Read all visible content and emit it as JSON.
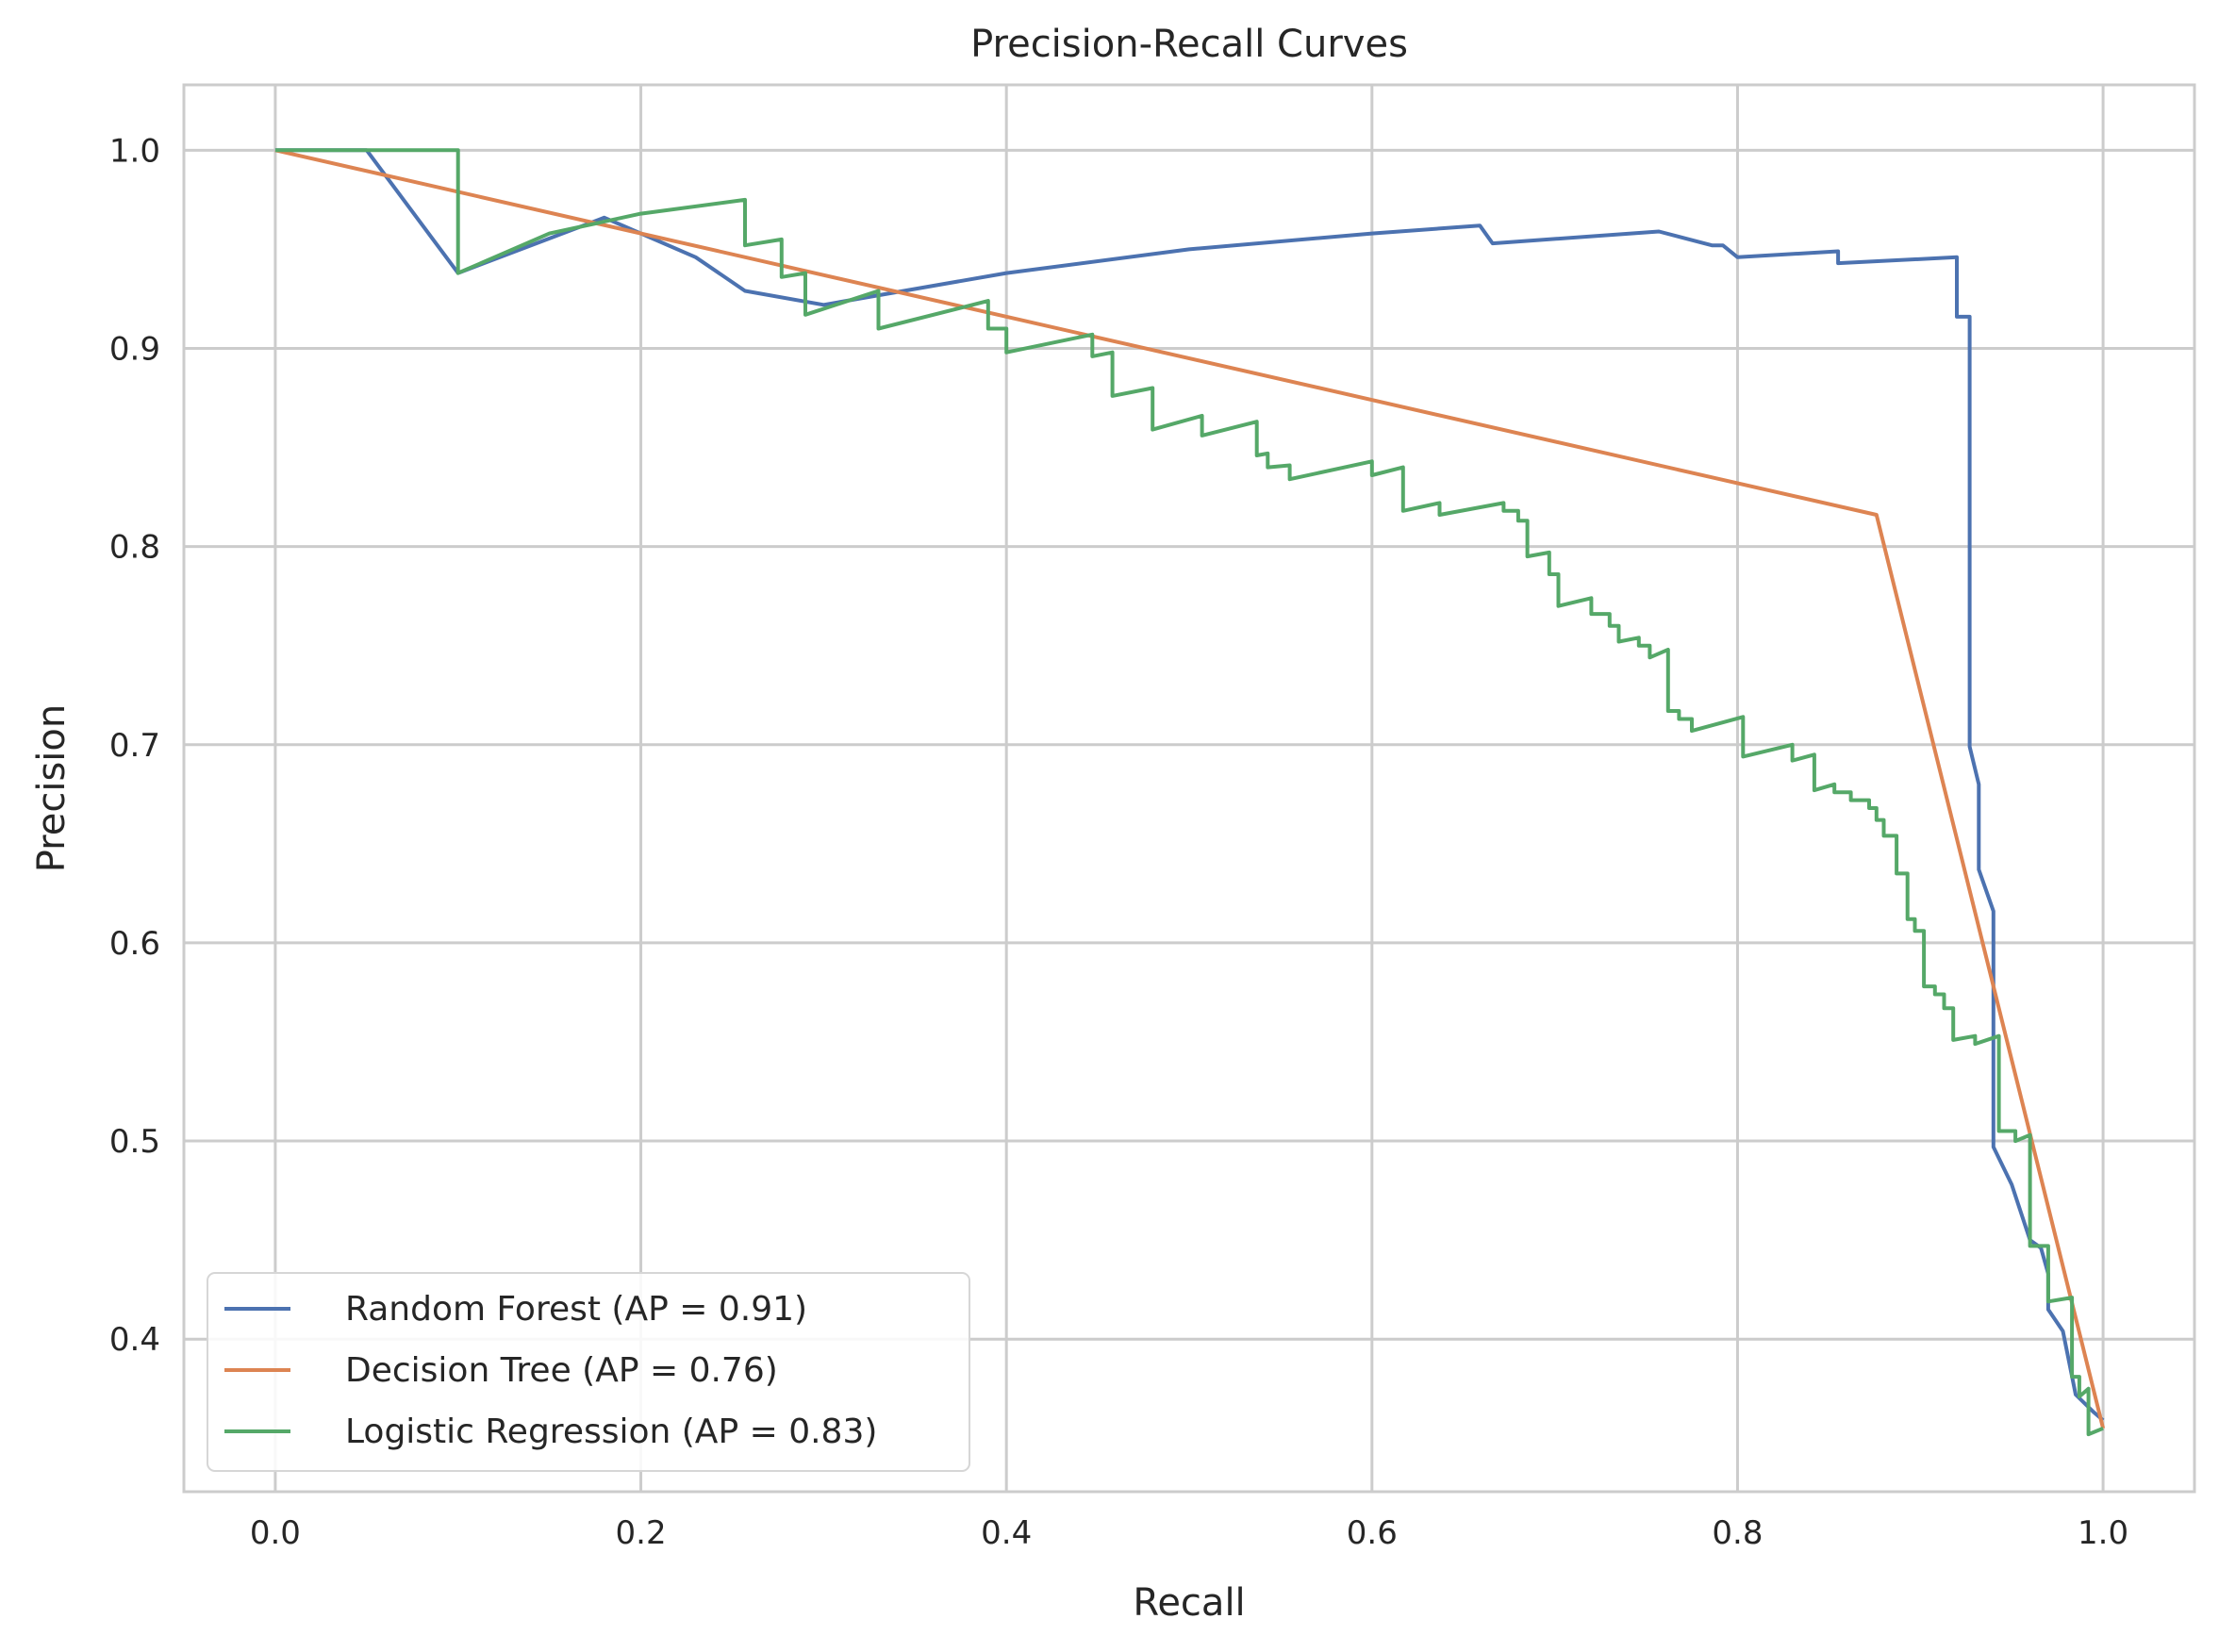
{
  "chart_data": {
    "type": "line",
    "title": "Precision-Recall Curves",
    "xlabel": "Recall",
    "ylabel": "Precision",
    "xlim": [
      -0.05,
      1.05
    ],
    "ylim": [
      0.323,
      1.033
    ],
    "xticks": [
      0.0,
      0.2,
      0.4,
      0.6,
      0.8,
      1.0
    ],
    "xtick_labels": [
      "0.0",
      "0.2",
      "0.4",
      "0.6",
      "0.8",
      "1.0"
    ],
    "yticks": [
      0.4,
      0.5,
      0.6,
      0.7,
      0.8,
      0.9,
      1.0
    ],
    "ytick_labels": [
      "0.4",
      "0.5",
      "0.6",
      "0.7",
      "0.8",
      "0.9",
      "1.0"
    ],
    "grid": true,
    "legend_position": "lower-left",
    "series": [
      {
        "name": "Random Forest (AP = 0.91)",
        "color": "#4c72b0",
        "points": [
          [
            0.0,
            1.0
          ],
          [
            0.05,
            1.0
          ],
          [
            0.1,
            0.938
          ],
          [
            0.18,
            0.966
          ],
          [
            0.23,
            0.946
          ],
          [
            0.257,
            0.929
          ],
          [
            0.3,
            0.922
          ],
          [
            0.4,
            0.938
          ],
          [
            0.5,
            0.95
          ],
          [
            0.6,
            0.958
          ],
          [
            0.659,
            0.962
          ],
          [
            0.666,
            0.953
          ],
          [
            0.757,
            0.959
          ],
          [
            0.786,
            0.952
          ],
          [
            0.792,
            0.952
          ],
          [
            0.8,
            0.946
          ],
          [
            0.855,
            0.949
          ],
          [
            0.855,
            0.943
          ],
          [
            0.92,
            0.946
          ],
          [
            0.92,
            0.916
          ],
          [
            0.927,
            0.916
          ],
          [
            0.927,
            0.699
          ],
          [
            0.932,
            0.68
          ],
          [
            0.932,
            0.637
          ],
          [
            0.94,
            0.616
          ],
          [
            0.94,
            0.497
          ],
          [
            0.95,
            0.478
          ],
          [
            0.96,
            0.45
          ],
          [
            0.966,
            0.446
          ],
          [
            0.97,
            0.433
          ],
          [
            0.97,
            0.415
          ],
          [
            0.978,
            0.404
          ],
          [
            0.985,
            0.372
          ],
          [
            0.995,
            0.363
          ],
          [
            1.0,
            0.359
          ]
        ]
      },
      {
        "name": "Decision Tree (AP = 0.76)",
        "color": "#dd8452",
        "points": [
          [
            0.0,
            1.0
          ],
          [
            0.876,
            0.816
          ],
          [
            1.0,
            0.355
          ]
        ]
      },
      {
        "name": "Logistic Regression (AP = 0.83)",
        "color": "#55a868",
        "points": [
          [
            0.0,
            1.0
          ],
          [
            0.1,
            1.0
          ],
          [
            0.1,
            0.938
          ],
          [
            0.15,
            0.958
          ],
          [
            0.2,
            0.968
          ],
          [
            0.257,
            0.975
          ],
          [
            0.257,
            0.952
          ],
          [
            0.277,
            0.955
          ],
          [
            0.277,
            0.936
          ],
          [
            0.29,
            0.938
          ],
          [
            0.29,
            0.917
          ],
          [
            0.33,
            0.929
          ],
          [
            0.33,
            0.91
          ],
          [
            0.39,
            0.924
          ],
          [
            0.39,
            0.91
          ],
          [
            0.4,
            0.91
          ],
          [
            0.4,
            0.898
          ],
          [
            0.447,
            0.907
          ],
          [
            0.447,
            0.896
          ],
          [
            0.458,
            0.898
          ],
          [
            0.458,
            0.876
          ],
          [
            0.48,
            0.88
          ],
          [
            0.48,
            0.859
          ],
          [
            0.507,
            0.866
          ],
          [
            0.507,
            0.856
          ],
          [
            0.537,
            0.863
          ],
          [
            0.537,
            0.846
          ],
          [
            0.543,
            0.847
          ],
          [
            0.543,
            0.84
          ],
          [
            0.555,
            0.841
          ],
          [
            0.555,
            0.834
          ],
          [
            0.6,
            0.843
          ],
          [
            0.6,
            0.836
          ],
          [
            0.617,
            0.84
          ],
          [
            0.617,
            0.818
          ],
          [
            0.637,
            0.822
          ],
          [
            0.637,
            0.816
          ],
          [
            0.672,
            0.822
          ],
          [
            0.672,
            0.818
          ],
          [
            0.68,
            0.818
          ],
          [
            0.68,
            0.813
          ],
          [
            0.685,
            0.813
          ],
          [
            0.685,
            0.795
          ],
          [
            0.697,
            0.797
          ],
          [
            0.697,
            0.786
          ],
          [
            0.702,
            0.786
          ],
          [
            0.702,
            0.77
          ],
          [
            0.72,
            0.774
          ],
          [
            0.72,
            0.766
          ],
          [
            0.73,
            0.766
          ],
          [
            0.73,
            0.76
          ],
          [
            0.735,
            0.76
          ],
          [
            0.735,
            0.752
          ],
          [
            0.746,
            0.754
          ],
          [
            0.746,
            0.75
          ],
          [
            0.752,
            0.75
          ],
          [
            0.752,
            0.744
          ],
          [
            0.762,
            0.748
          ],
          [
            0.762,
            0.717
          ],
          [
            0.768,
            0.717
          ],
          [
            0.768,
            0.713
          ],
          [
            0.775,
            0.713
          ],
          [
            0.775,
            0.707
          ],
          [
            0.803,
            0.714
          ],
          [
            0.803,
            0.694
          ],
          [
            0.83,
            0.7
          ],
          [
            0.83,
            0.692
          ],
          [
            0.842,
            0.695
          ],
          [
            0.842,
            0.677
          ],
          [
            0.853,
            0.68
          ],
          [
            0.853,
            0.676
          ],
          [
            0.862,
            0.676
          ],
          [
            0.862,
            0.672
          ],
          [
            0.872,
            0.672
          ],
          [
            0.872,
            0.668
          ],
          [
            0.876,
            0.668
          ],
          [
            0.876,
            0.662
          ],
          [
            0.88,
            0.662
          ],
          [
            0.88,
            0.654
          ],
          [
            0.887,
            0.654
          ],
          [
            0.887,
            0.635
          ],
          [
            0.893,
            0.635
          ],
          [
            0.893,
            0.612
          ],
          [
            0.897,
            0.612
          ],
          [
            0.897,
            0.606
          ],
          [
            0.902,
            0.606
          ],
          [
            0.902,
            0.578
          ],
          [
            0.908,
            0.578
          ],
          [
            0.908,
            0.574
          ],
          [
            0.913,
            0.574
          ],
          [
            0.913,
            0.567
          ],
          [
            0.918,
            0.567
          ],
          [
            0.918,
            0.551
          ],
          [
            0.93,
            0.553
          ],
          [
            0.93,
            0.549
          ],
          [
            0.943,
            0.553
          ],
          [
            0.943,
            0.505
          ],
          [
            0.952,
            0.505
          ],
          [
            0.952,
            0.5
          ],
          [
            0.96,
            0.503
          ],
          [
            0.96,
            0.447
          ],
          [
            0.97,
            0.447
          ],
          [
            0.97,
            0.419
          ],
          [
            0.983,
            0.421
          ],
          [
            0.983,
            0.381
          ],
          [
            0.987,
            0.381
          ],
          [
            0.987,
            0.371
          ],
          [
            0.992,
            0.375
          ],
          [
            0.992,
            0.352
          ],
          [
            1.0,
            0.355
          ]
        ]
      }
    ]
  }
}
